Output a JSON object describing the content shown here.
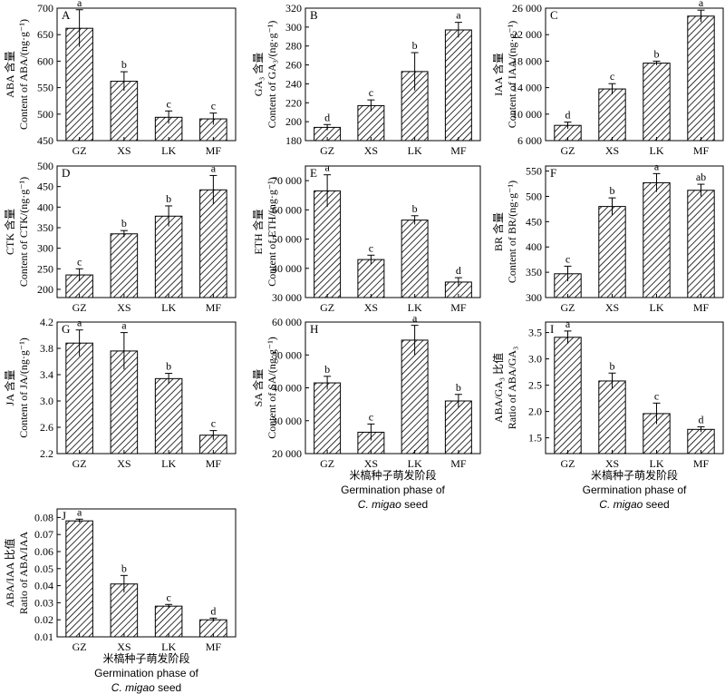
{
  "chart_data": [
    {
      "panel": "A",
      "type": "bar",
      "categories": [
        "GZ",
        "XS",
        "LK",
        "MF"
      ],
      "values": [
        662,
        562,
        494,
        491
      ],
      "errors": [
        35,
        18,
        12,
        11
      ],
      "letters": [
        "a",
        "b",
        "c",
        "c"
      ],
      "ylabel_cn": "ABA 含量",
      "ylabel_en": "Content of ABA/(ng·g⁻¹)",
      "ylim": [
        450,
        700
      ],
      "yticks": [
        450,
        500,
        550,
        600,
        650,
        700
      ],
      "yticklabels": [
        "450",
        "500",
        "550",
        "600",
        "650",
        "700"
      ]
    },
    {
      "panel": "B",
      "type": "bar",
      "categories": [
        "GZ",
        "XS",
        "LK",
        "MF"
      ],
      "values": [
        194,
        217,
        253,
        297
      ],
      "errors": [
        3,
        6,
        20,
        8
      ],
      "letters": [
        "d",
        "c",
        "b",
        "a"
      ],
      "ylabel_cn": "GA₃ 含量",
      "ylabel_en": "Content of GA₃/(ng·g⁻¹)",
      "ylim": [
        180,
        320
      ],
      "yticks": [
        180,
        200,
        220,
        240,
        260,
        280,
        300,
        320
      ],
      "yticklabels": [
        "180",
        "200",
        "220",
        "240",
        "260",
        "280",
        "300",
        "320"
      ]
    },
    {
      "panel": "C",
      "type": "bar",
      "categories": [
        "GZ",
        "XS",
        "LK",
        "MF"
      ],
      "values": [
        8300,
        13800,
        17700,
        24800
      ],
      "errors": [
        500,
        800,
        300,
        900
      ],
      "letters": [
        "d",
        "c",
        "b",
        "a"
      ],
      "ylabel_cn": "IAA 含量",
      "ylabel_en": "Content of IAA/(ng·g⁻¹)",
      "ylim": [
        6000,
        26000
      ],
      "yticks": [
        6000,
        10000,
        14000,
        18000,
        22000,
        26000
      ],
      "yticklabels": [
        "6 000",
        "10 000",
        "14 000",
        "18 000",
        "22 000",
        "26 000"
      ]
    },
    {
      "panel": "D",
      "type": "bar",
      "categories": [
        "GZ",
        "XS",
        "LK",
        "MF"
      ],
      "values": [
        235,
        335,
        378,
        442
      ],
      "errors": [
        15,
        8,
        25,
        35
      ],
      "letters": [
        "c",
        "b",
        "b",
        "a"
      ],
      "ylabel_cn": "CTK 含量",
      "ylabel_en": "Content of CTK/(ng·g⁻¹)",
      "ylim": [
        180,
        500
      ],
      "yticks": [
        200,
        250,
        300,
        350,
        400,
        450,
        500
      ],
      "yticklabels": [
        "200",
        "250",
        "300",
        "350",
        "400",
        "450",
        "500"
      ]
    },
    {
      "panel": "E",
      "type": "bar",
      "categories": [
        "GZ",
        "XS",
        "LK",
        "MF"
      ],
      "values": [
        66500,
        43000,
        56500,
        35300
      ],
      "errors": [
        5500,
        1500,
        1500,
        1500
      ],
      "letters": [
        "a",
        "c",
        "b",
        "d"
      ],
      "ylabel_cn": "ETH 含量",
      "ylabel_en": "Content of ETH/(ng·g⁻¹)",
      "ylim": [
        30000,
        75000
      ],
      "yticks": [
        30000,
        40000,
        50000,
        60000,
        70000
      ],
      "yticklabels": [
        "30 000",
        "40 000",
        "50 000",
        "60 000",
        "70 000"
      ]
    },
    {
      "panel": "F",
      "type": "bar",
      "categories": [
        "GZ",
        "XS",
        "LK",
        "MF"
      ],
      "values": [
        347,
        480,
        527,
        512
      ],
      "errors": [
        15,
        17,
        18,
        12
      ],
      "letters": [
        "c",
        "b",
        "a",
        "ab"
      ],
      "ylabel_cn": "BR 含量",
      "ylabel_en": "Content of BR/(ng·g⁻¹)",
      "ylim": [
        300,
        560
      ],
      "yticks": [
        300,
        350,
        400,
        450,
        500,
        550
      ],
      "yticklabels": [
        "300",
        "350",
        "400",
        "450",
        "500",
        "550"
      ]
    },
    {
      "panel": "G",
      "type": "bar",
      "categories": [
        "GZ",
        "XS",
        "LK",
        "MF"
      ],
      "values": [
        3.88,
        3.76,
        3.34,
        2.48
      ],
      "errors": [
        0.2,
        0.28,
        0.08,
        0.07
      ],
      "letters": [
        "a",
        "a",
        "b",
        "c"
      ],
      "ylabel_cn": "JA 含量",
      "ylabel_en": "Content of JA/(ng·g⁻¹)",
      "ylim": [
        2.2,
        4.2
      ],
      "yticks": [
        2.2,
        2.6,
        3.0,
        3.4,
        3.8,
        4.2
      ],
      "yticklabels": [
        "2.2",
        "2.6",
        "3.0",
        "3.4",
        "3.8",
        "4.2"
      ]
    },
    {
      "panel": "H",
      "type": "bar",
      "categories": [
        "GZ",
        "XS",
        "LK",
        "MF"
      ],
      "values": [
        41500,
        26500,
        54500,
        36000
      ],
      "errors": [
        2000,
        2500,
        4500,
        2000
      ],
      "letters": [
        "b",
        "c",
        "a",
        "b"
      ],
      "ylabel_cn": "SA 含量",
      "ylabel_en": "Content of SA/(ng·g⁻¹)",
      "ylim": [
        20000,
        60000
      ],
      "yticks": [
        20000,
        30000,
        40000,
        50000,
        60000
      ],
      "yticklabels": [
        "20 000",
        "30 000",
        "40 000",
        "50 000",
        "60 000"
      ],
      "xlabel_cn": "米槁种子萌发阶段",
      "xlabel_en1": "Germination phase of",
      "xlabel_en2": "C. migao seed"
    },
    {
      "panel": "I",
      "type": "bar",
      "categories": [
        "GZ",
        "XS",
        "LK",
        "MF"
      ],
      "values": [
        3.41,
        2.58,
        1.96,
        1.66
      ],
      "errors": [
        0.12,
        0.15,
        0.2,
        0.05
      ],
      "letters": [
        "a",
        "b",
        "c",
        "d"
      ],
      "ylabel_cn": "ABA/GA₃ 比值",
      "ylabel_en": "Ratio of ABA/GA₃",
      "ylim": [
        1.2,
        3.7
      ],
      "yticks": [
        1.5,
        2.0,
        2.5,
        3.0,
        3.5
      ],
      "yticklabels": [
        "1.5",
        "2.0",
        "2.5",
        "3.0",
        "3.5"
      ],
      "xlabel_cn": "米槁种子萌发阶段",
      "xlabel_en1": "Germination phase of",
      "xlabel_en2": "C. migao seed"
    },
    {
      "panel": "J",
      "type": "bar",
      "categories": [
        "GZ",
        "XS",
        "LK",
        "MF"
      ],
      "values": [
        0.078,
        0.041,
        0.028,
        0.02
      ],
      "errors": [
        0.001,
        0.005,
        0.001,
        0.001
      ],
      "letters": [
        "a",
        "b",
        "c",
        "d"
      ],
      "ylabel_cn": "ABA/IAA 比值",
      "ylabel_en": "Ratio of ABA/IAA",
      "ylim": [
        0.01,
        0.085
      ],
      "yticks": [
        0.01,
        0.02,
        0.03,
        0.04,
        0.05,
        0.06,
        0.07,
        0.08
      ],
      "yticklabels": [
        "0.01",
        "0.02",
        "0.03",
        "0.04",
        "0.05",
        "0.06",
        "0.07",
        "0.08"
      ],
      "xlabel_cn": "米槁种子萌发阶段",
      "xlabel_en1": "Germination phase of",
      "xlabel_en2": "C. migao seed"
    }
  ]
}
